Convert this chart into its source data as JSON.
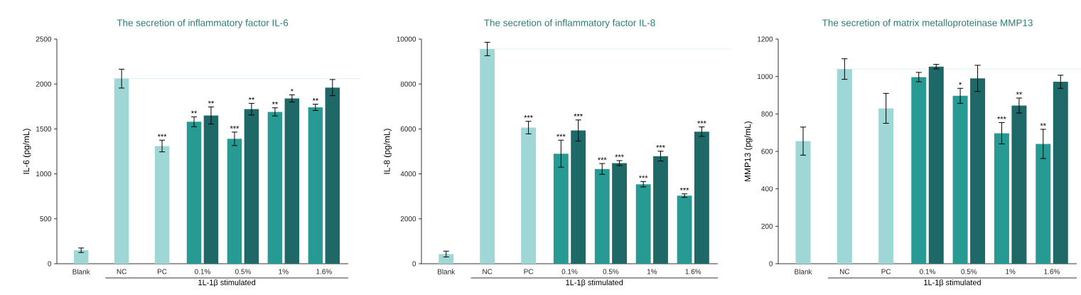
{
  "chart_data": [
    {
      "type": "bar",
      "title": "The secretion of inflammatory factor IL-6",
      "ylabel": "IL-6 (pg/mL)",
      "categories": [
        "Blank",
        "NC",
        "PC",
        "0.1%",
        "0.5%",
        "1%",
        "1.6%"
      ],
      "series": [
        {
          "color": "#9fd6d6",
          "values": [
            150,
            2060,
            1310,
            null,
            null,
            null,
            null
          ],
          "errors": [
            25,
            105,
            65,
            null,
            null,
            null,
            null
          ]
        },
        {
          "color": "#279b93",
          "values": [
            null,
            null,
            null,
            1580,
            1390,
            1690,
            1740
          ],
          "errors": [
            null,
            null,
            null,
            55,
            75,
            45,
            35
          ]
        },
        {
          "color": "#1f6868",
          "values": [
            null,
            null,
            null,
            1650,
            1720,
            1840,
            1960
          ],
          "errors": [
            null,
            null,
            null,
            95,
            65,
            40,
            90
          ]
        }
      ],
      "ylim": [
        0,
        2500
      ],
      "yticks": [
        0,
        500,
        1000,
        1500,
        2000,
        2500
      ],
      "ref_lines": [
        {
          "axis": "y",
          "value": 2060,
          "color": "#d5eeee"
        }
      ],
      "annotations": [
        {
          "text": "***",
          "x": "PC",
          "y": 1310
        },
        {
          "text": "**",
          "x": "0.1%",
          "y": 1580
        },
        {
          "text": "**",
          "x": "0.1%",
          "y": 1650
        },
        {
          "text": "***",
          "x": "0.5%",
          "y": 1390
        },
        {
          "text": "**",
          "x": "0.5%",
          "y": 1720
        },
        {
          "text": "**",
          "x": "1%",
          "y": 1690
        },
        {
          "text": "*",
          "x": "1%",
          "y": 1840
        },
        {
          "text": "**",
          "x": "1.6%",
          "y": 1740
        },
        "1L-1β stimulated"
      ]
    },
    {
      "type": "bar",
      "title": "The secretion of inflammatory factor IL-8",
      "ylabel": "IL-8 (pg/mL)",
      "categories": [
        "Blank",
        "NC",
        "PC",
        "0.1%",
        "0.5%",
        "1%",
        "1.6%"
      ],
      "series": [
        {
          "color": "#9fd6d6",
          "values": [
            430,
            9560,
            6060,
            null,
            null,
            null,
            null
          ],
          "errors": [
            130,
            300,
            280,
            null,
            null,
            null,
            null
          ]
        },
        {
          "color": "#279b93",
          "values": [
            null,
            null,
            null,
            4900,
            4220,
            3540,
            3030
          ],
          "errors": [
            null,
            null,
            null,
            600,
            240,
            120,
            80
          ]
        },
        {
          "color": "#1f6868",
          "values": [
            null,
            null,
            null,
            5930,
            4480,
            4790,
            5880
          ],
          "errors": [
            null,
            null,
            null,
            470,
            110,
            220,
            210
          ]
        }
      ],
      "ylim": [
        0,
        10000
      ],
      "yticks": [
        0,
        2000,
        4000,
        6000,
        8000,
        10000
      ],
      "ref_lines": [
        {
          "axis": "y",
          "value": 9560,
          "color": "#d5eeee"
        }
      ],
      "annotations": [
        {
          "text": "***",
          "x": "PC",
          "y": 6060
        },
        {
          "text": "***",
          "x": "0.1%",
          "y": 4900
        },
        {
          "text": "***",
          "x": "0.1%",
          "y": 5930
        },
        {
          "text": "***",
          "x": "0.5%",
          "y": 4220
        },
        {
          "text": "***",
          "x": "0.5%",
          "y": 4480
        },
        {
          "text": "***",
          "x": "1%",
          "y": 3540
        },
        {
          "text": "***",
          "x": "1%",
          "y": 4790
        },
        {
          "text": "***",
          "x": "1.6%",
          "y": 3030
        },
        {
          "text": "***",
          "x": "1.6%",
          "y": 5880
        },
        "1L-1β stimulated"
      ]
    },
    {
      "type": "bar",
      "title": "The secretion of matrix metalloproteinase MMP13",
      "ylabel": "MMP13 (pg/mL)",
      "categories": [
        "Blank",
        "NC",
        "PC",
        "0.1%",
        "0.5%",
        "1%",
        "1.6%"
      ],
      "series": [
        {
          "color": "#9fd6d6",
          "values": [
            655,
            1040,
            830,
            null,
            null,
            null,
            null
          ],
          "errors": [
            75,
            55,
            80,
            null,
            null,
            null,
            null
          ]
        },
        {
          "color": "#279b93",
          "values": [
            null,
            null,
            null,
            997,
            897,
            697,
            640
          ],
          "errors": [
            null,
            null,
            null,
            25,
            40,
            57,
            78
          ]
        },
        {
          "color": "#1f6868",
          "values": [
            null,
            null,
            null,
            1053,
            990,
            845,
            972
          ],
          "errors": [
            null,
            null,
            null,
            12,
            70,
            40,
            35
          ]
        }
      ],
      "ylim": [
        0,
        1200
      ],
      "yticks": [
        0,
        200,
        400,
        600,
        800,
        1000,
        1200
      ],
      "ref_lines": [
        {
          "axis": "y",
          "value": 1040,
          "color": "#d5eeee"
        }
      ],
      "annotations": [
        {
          "text": "*",
          "x": "0.5%",
          "y": 897
        },
        {
          "text": "***",
          "x": "1%",
          "y": 697
        },
        {
          "text": "**",
          "x": "1%",
          "y": 845
        },
        {
          "text": "**",
          "x": "1.6%",
          "y": 640
        },
        "1L-1β stimulated"
      ]
    }
  ]
}
